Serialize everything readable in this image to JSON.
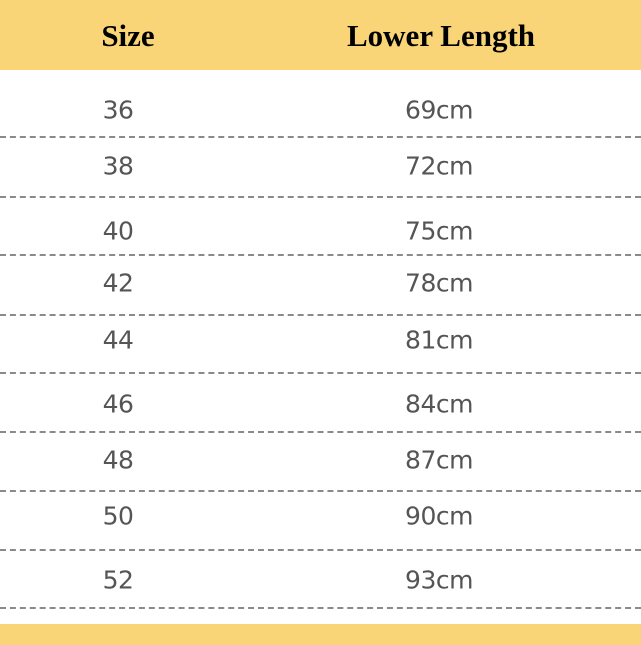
{
  "header": {
    "size": "Size",
    "lower_length": "Lower Length"
  },
  "rows": [
    {
      "size": "36",
      "length": "69cm"
    },
    {
      "size": "38",
      "length": "72cm"
    },
    {
      "size": "40",
      "length": "75cm"
    },
    {
      "size": "42",
      "length": "78cm"
    },
    {
      "size": "44",
      "length": "81cm"
    },
    {
      "size": "46",
      "length": "84cm"
    },
    {
      "size": "48",
      "length": "87cm"
    },
    {
      "size": "50",
      "length": "90cm"
    },
    {
      "size": "52",
      "length": "93cm"
    }
  ],
  "colors": {
    "header_bg": "#F9D577",
    "text": "#555555",
    "divider": "#8a8a8a"
  }
}
